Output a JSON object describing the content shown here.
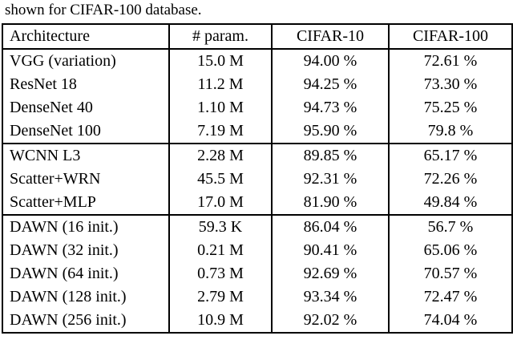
{
  "caption": "shown for CIFAR-100 database.",
  "table": {
    "headers": [
      "Architecture",
      "# param.",
      "CIFAR-10",
      "CIFAR-100"
    ],
    "rows": [
      [
        "VGG (variation)",
        "15.0 M",
        "94.00 %",
        "72.61 %"
      ],
      [
        "ResNet 18",
        "11.2 M",
        "94.25 %",
        "73.30 %"
      ],
      [
        "DenseNet 40",
        "1.10 M",
        "94.73 %",
        "75.25 %"
      ],
      [
        "DenseNet 100",
        "7.19 M",
        "95.90 %",
        "79.8 %"
      ],
      [
        "WCNN L3",
        "2.28 M",
        "89.85 %",
        "65.17 %"
      ],
      [
        "Scatter+WRN",
        "45.5 M",
        "92.31 %",
        "72.26 %"
      ],
      [
        "Scatter+MLP",
        "17.0 M",
        "81.90 %",
        "49.84 %"
      ],
      [
        "DAWN (16 init.)",
        "59.3 K",
        "86.04 %",
        "56.7 %"
      ],
      [
        "DAWN (32 init.)",
        "0.21 M",
        "90.41 %",
        "65.06 %"
      ],
      [
        "DAWN (64 init.)",
        "0.73 M",
        "92.69 %",
        "70.57 %"
      ],
      [
        "DAWN (128 init.)",
        "2.79 M",
        "93.34 %",
        "72.47 %"
      ],
      [
        "DAWN (256 init.)",
        "10.9 M",
        "92.02 %",
        "74.04 %"
      ]
    ],
    "bold_cells": [
      [
        10,
        2
      ],
      [
        11,
        3
      ]
    ],
    "group_breaks_before_rows": [
      4,
      7
    ]
  }
}
